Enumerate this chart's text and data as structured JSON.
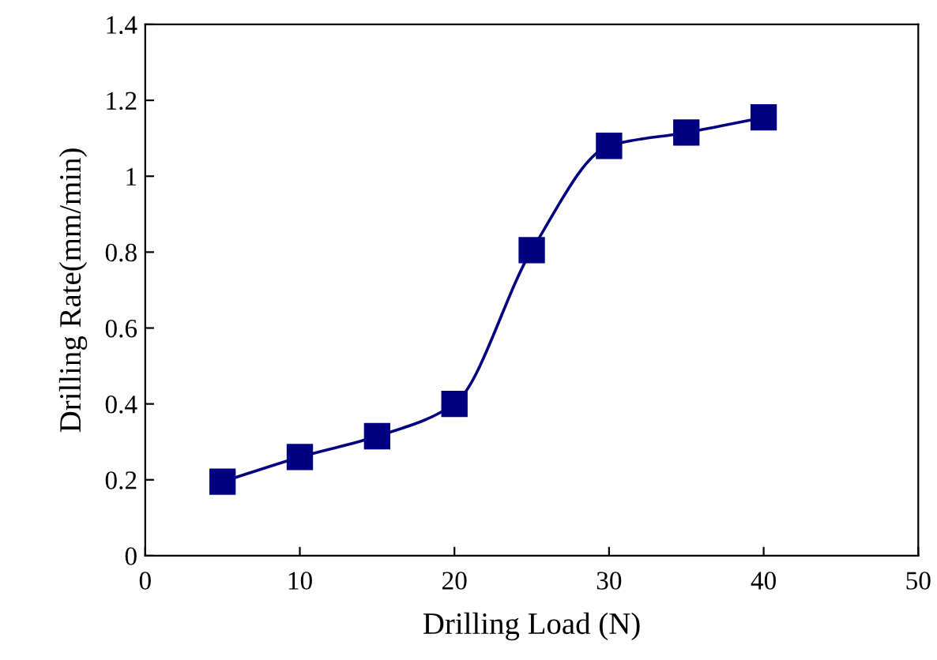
{
  "chart_data": {
    "type": "line",
    "xlabel": "Drilling Load (N)",
    "ylabel": "Drilling Rate(mm/min)",
    "x": [
      5,
      10,
      15,
      20,
      25,
      30,
      35,
      40
    ],
    "series": [
      {
        "color": "#000080",
        "values": [
          0.195,
          0.26,
          0.315,
          0.4,
          0.805,
          1.08,
          1.115,
          1.155
        ]
      }
    ],
    "xlim": [
      0,
      50
    ],
    "xticks": [
      0,
      10,
      20,
      30,
      40,
      50
    ],
    "ylim": [
      0,
      1.4
    ],
    "yticks": [
      0,
      0.2,
      0.4,
      0.6,
      0.8,
      1,
      1.2,
      1.4
    ],
    "marker": "square",
    "line_style": "solid",
    "grid": false
  }
}
